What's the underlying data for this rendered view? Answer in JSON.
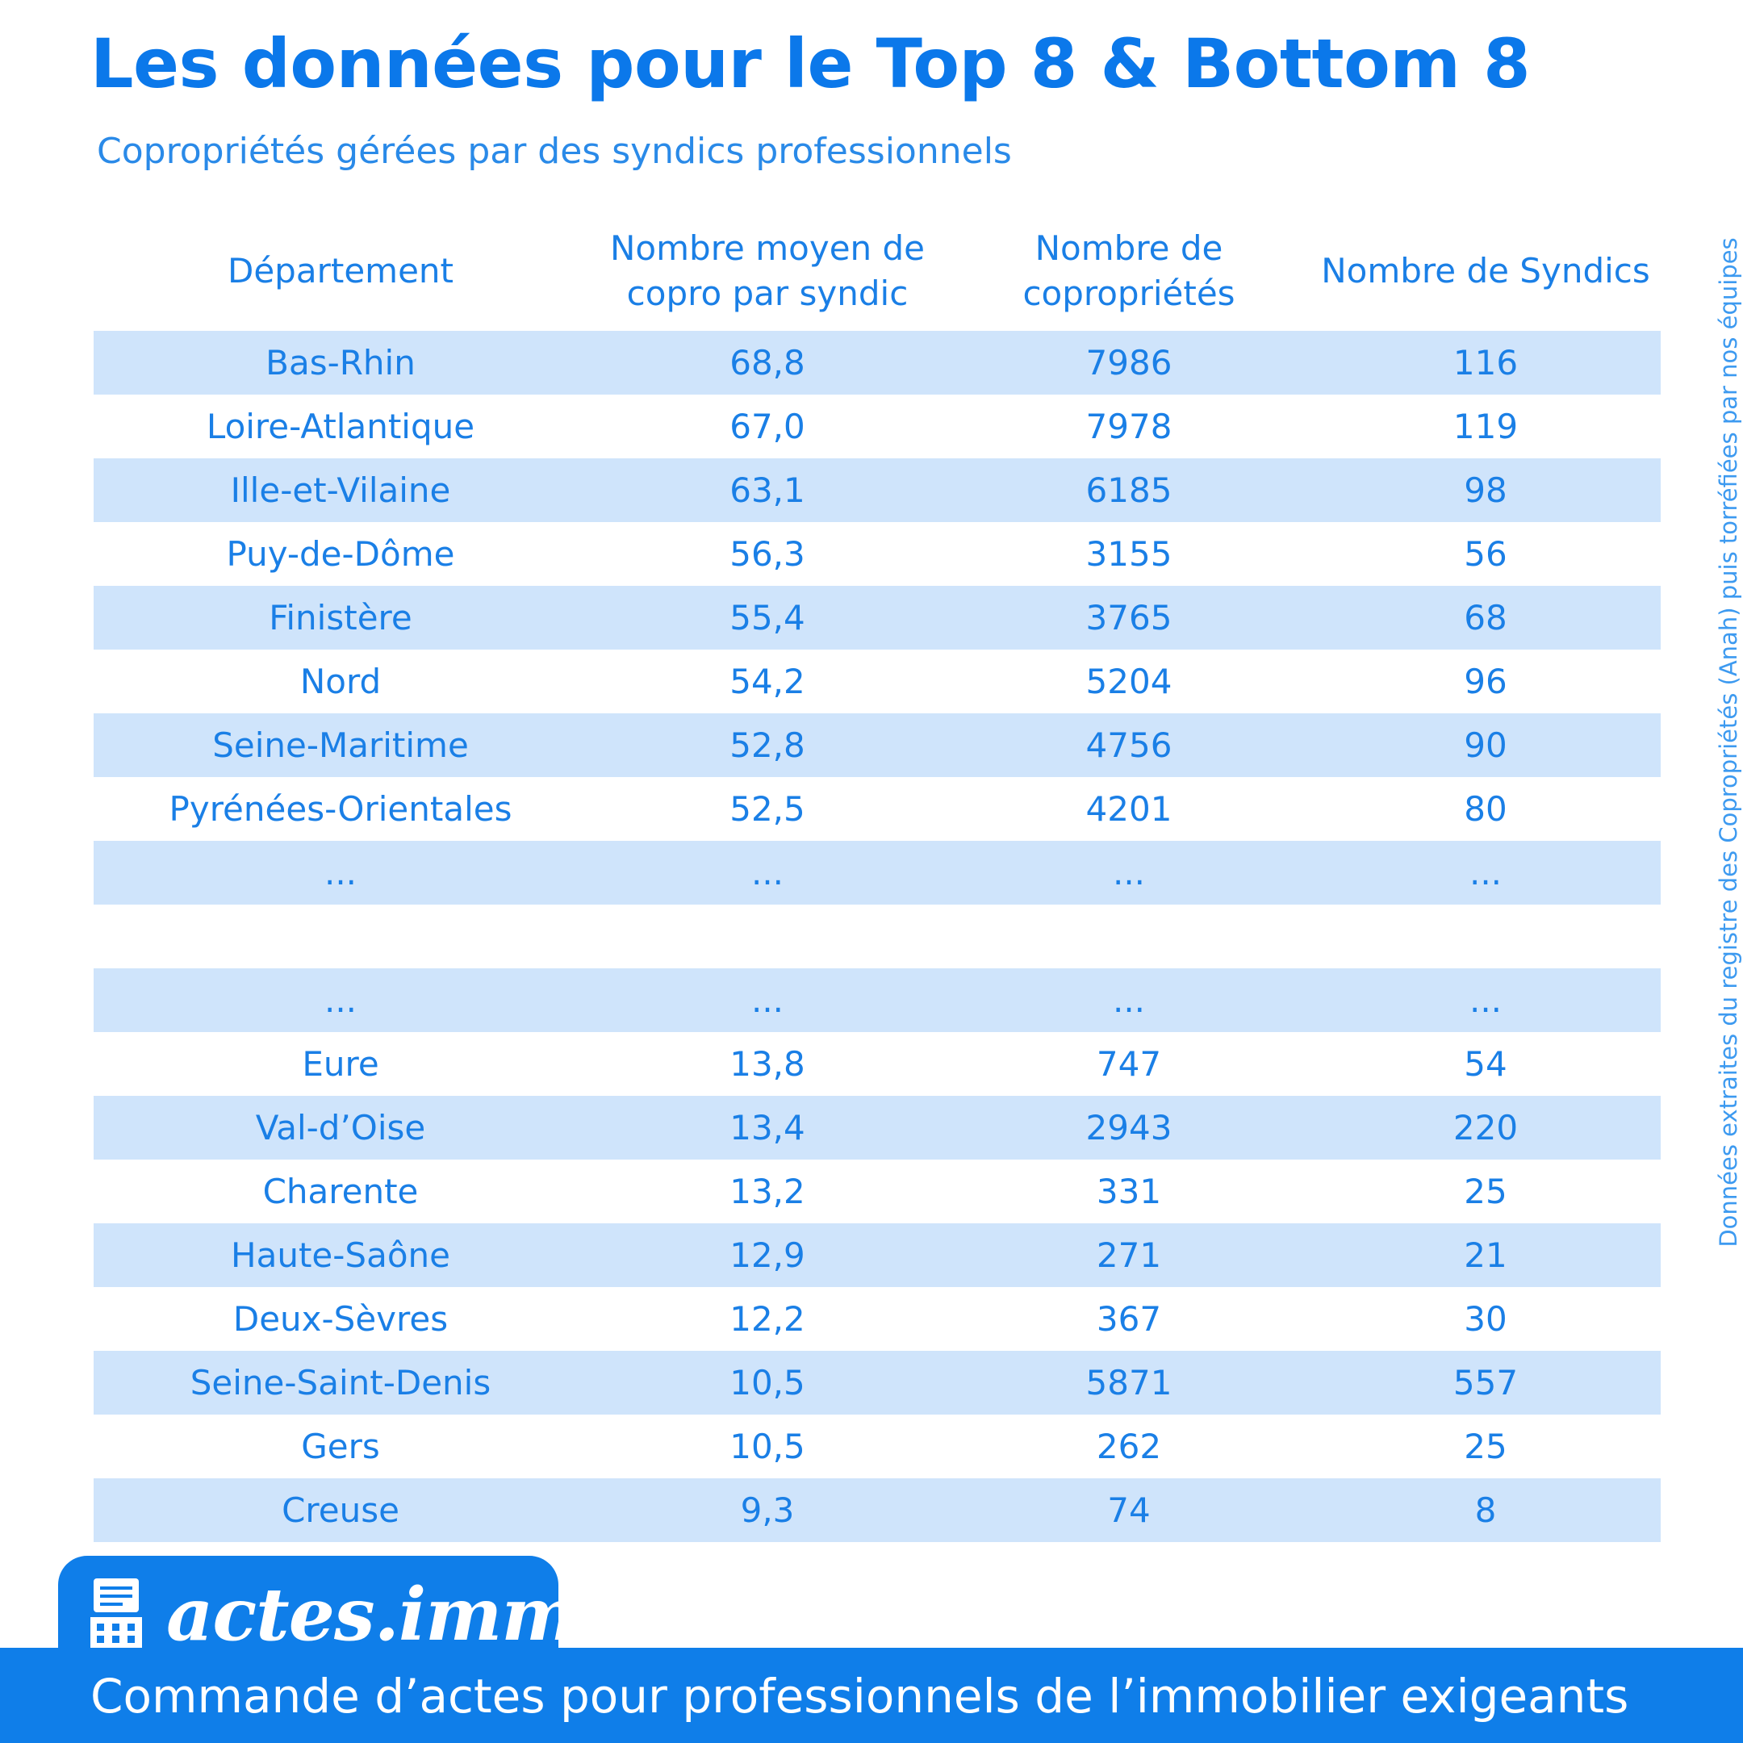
{
  "header": {
    "title": "Les données pour le Top 8 & Bottom 8",
    "subtitle": "Copropriétés gérées par des syndics professionnels"
  },
  "side_note": "Données extraites du registre des Copropriétés (Anah) puis torréfiées par nos équipes",
  "table": {
    "columns": [
      "Département",
      "Nombre moyen de copro par syndic",
      "Nombre de copropriétés",
      "Nombre de Syndics"
    ],
    "rows": [
      [
        "Bas-Rhin",
        "68,8",
        "7986",
        "116"
      ],
      [
        "Loire-Atlantique",
        "67,0",
        "7978",
        "119"
      ],
      [
        "Ille-et-Vilaine",
        "63,1",
        "6185",
        "98"
      ],
      [
        "Puy-de-Dôme",
        "56,3",
        "3155",
        "56"
      ],
      [
        "Finistère",
        "55,4",
        "3765",
        "68"
      ],
      [
        "Nord",
        "54,2",
        "5204",
        "96"
      ],
      [
        "Seine-Maritime",
        "52,8",
        "4756",
        "90"
      ],
      [
        "Pyrénées-Orientales",
        "52,5",
        "4201",
        "80"
      ],
      [
        "...",
        "...",
        "...",
        "..."
      ],
      [
        "",
        "",
        "",
        ""
      ],
      [
        "...",
        "...",
        "...",
        "..."
      ],
      [
        "Eure",
        "13,8",
        "747",
        "54"
      ],
      [
        "Val-d’Oise",
        "13,4",
        "2943",
        "220"
      ],
      [
        "Charente",
        "13,2",
        "331",
        "25"
      ],
      [
        "Haute-Saône",
        "12,9",
        "271",
        "21"
      ],
      [
        "Deux-Sèvres",
        "12,2",
        "367",
        "30"
      ],
      [
        "Seine-Saint-Denis",
        "10,5",
        "5871",
        "557"
      ],
      [
        "Gers",
        "10,5",
        "262",
        "25"
      ],
      [
        "Creuse",
        "9,3",
        "74",
        "8"
      ]
    ]
  },
  "brand": {
    "name": "actes.immo",
    "icon": "building-document-icon"
  },
  "footer": {
    "tagline": "Commande d’actes pour professionnels de l’immobilier exigeants"
  },
  "colors": {
    "primary": "#0f7ee9",
    "row_shade": "#cfe4fb",
    "text": "#1a7fe6"
  }
}
